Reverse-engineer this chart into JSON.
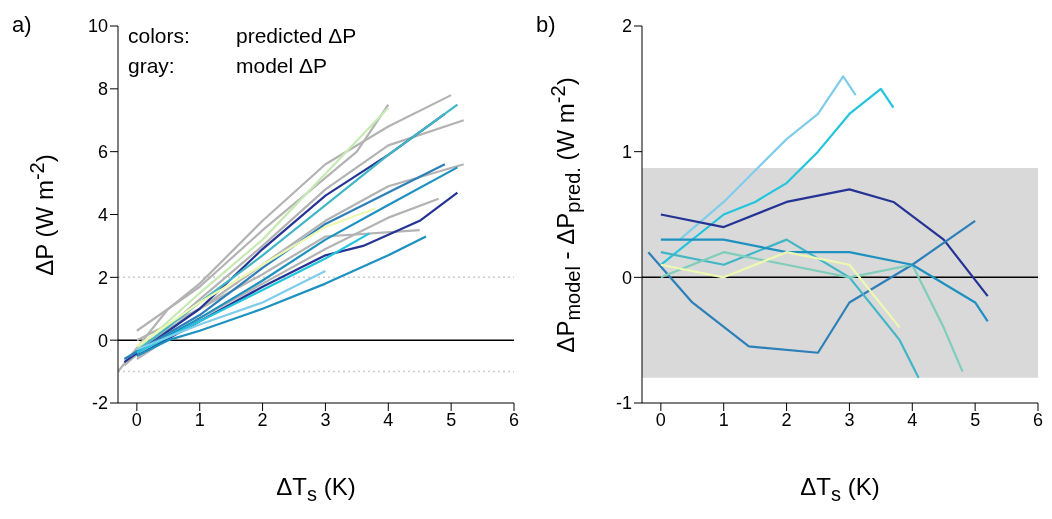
{
  "chart_data": [
    {
      "type": "line",
      "title": "a)",
      "xlabel": "ΔT$_{s}$ (K)",
      "ylabel": "ΔP (W m$^{-2}$)",
      "xlim": [
        -0.3,
        6
      ],
      "xticks": [
        0,
        1,
        2,
        3,
        4,
        5,
        6
      ],
      "ylim": [
        -2,
        10
      ],
      "yticks": [
        -2,
        0,
        2,
        4,
        6,
        8,
        10
      ],
      "annotations": [
        "colors:",
        "predicted ΔP",
        "gray:",
        "model ΔP"
      ],
      "ref_lines": [
        {
          "axis": "y",
          "value": 0,
          "color": "#000000",
          "line_style": "solid"
        },
        {
          "axis": "y",
          "value": 2,
          "color": "#cccccc",
          "line_style": "dotted"
        },
        {
          "axis": "y",
          "value": -1,
          "color": "#cccccc",
          "line_style": "dotted"
        }
      ],
      "series": [
        {
          "color": "#b3b3b3",
          "x": [
            -0.3,
            0.5,
            1,
            2,
            3,
            4,
            5
          ],
          "values": [
            -1,
            1,
            1.8,
            3.8,
            5.6,
            6.8,
            7.8
          ]
        },
        {
          "color": "#b3b3b3",
          "x": [
            -0.2,
            1,
            2,
            3,
            4,
            5.2
          ],
          "values": [
            -0.8,
            1.3,
            3,
            4.8,
            6.2,
            7
          ]
        },
        {
          "color": "#b3b3b3",
          "x": [
            0,
            1,
            2,
            3,
            4,
            5.2
          ],
          "values": [
            0,
            1,
            2.4,
            3.8,
            4.9,
            5.6
          ]
        },
        {
          "color": "#b3b3b3",
          "x": [
            0,
            1,
            2,
            3,
            4,
            4.8
          ],
          "values": [
            -0.6,
            0.7,
            1.8,
            2.9,
            3.9,
            4.5
          ]
        },
        {
          "color": "#b3b3b3",
          "x": [
            0,
            1,
            2,
            3.5,
            4
          ],
          "values": [
            0.3,
            1.7,
            3.5,
            6,
            7.5
          ]
        },
        {
          "color": "#b3b3b3",
          "x": [
            0,
            1,
            2,
            3,
            4.5
          ],
          "values": [
            -0.3,
            1,
            2.1,
            3.3,
            3.5
          ]
        },
        {
          "color": "#c7e9b4",
          "x": [
            0,
            1,
            2,
            3,
            4
          ],
          "values": [
            -0.3,
            1.5,
            3.2,
            5.3,
            7.4
          ]
        },
        {
          "color": "#253494",
          "x": [
            -0.2,
            1,
            2,
            3,
            4,
            4.9
          ],
          "values": [
            -0.7,
            1,
            2.9,
            4.6,
            5.9,
            7.2
          ]
        },
        {
          "color": "#41b6c4",
          "x": [
            -0.1,
            1,
            2,
            3,
            4,
            5.1
          ],
          "values": [
            -0.5,
            1.2,
            2.7,
            4.3,
            5.9,
            7.5
          ]
        },
        {
          "color": "#2c7fb8",
          "x": [
            -0.2,
            1,
            2,
            3,
            4,
            4.9
          ],
          "values": [
            -0.6,
            0.8,
            2.3,
            3.7,
            4.7,
            5.6
          ]
        },
        {
          "color": "#1d91c0",
          "x": [
            0,
            1,
            2,
            3,
            4,
            5.1
          ],
          "values": [
            -0.4,
            0.7,
            1.9,
            3.2,
            4.3,
            5.5
          ]
        },
        {
          "color": "#253494",
          "x": [
            0,
            1,
            2,
            3,
            3.6,
            4.5,
            5.1
          ],
          "values": [
            -0.5,
            0.6,
            1.7,
            2.7,
            3,
            3.8,
            4.7
          ]
        },
        {
          "color": "#1d91c0",
          "x": [
            0,
            0.5,
            1,
            2,
            3,
            4,
            4.6
          ],
          "values": [
            -0.5,
            0,
            0.3,
            1,
            1.8,
            2.7,
            3.3
          ]
        },
        {
          "color": "#22c5dd",
          "x": [
            0,
            1,
            2,
            3,
            3.7
          ],
          "values": [
            -0.4,
            0.6,
            1.6,
            2.6,
            3.4
          ]
        },
        {
          "color": "#7fcdea",
          "x": [
            0,
            1,
            2,
            3
          ],
          "values": [
            -0.3,
            0.5,
            1.2,
            2.2
          ]
        },
        {
          "color": "#edf8b1",
          "x": [
            0,
            1,
            2,
            3,
            3.8
          ],
          "values": [
            -0.2,
            1.2,
            2.4,
            3.6,
            4.2
          ]
        }
      ]
    },
    {
      "type": "line",
      "title": "b)",
      "xlabel": "ΔT$_{s}$ (K)",
      "ylabel": "ΔP$_{model}$ - ΔP$_{pred.}$ (W m$^{-2}$)",
      "xlim": [
        -0.3,
        6
      ],
      "xticks": [
        0,
        1,
        2,
        3,
        4,
        5,
        6
      ],
      "ylim": [
        -1,
        2
      ],
      "yticks": [
        -1,
        0,
        1,
        2
      ],
      "bands": [
        {
          "axis": "y",
          "from": -0.8,
          "to": 0.87,
          "color": "#d9d9d9"
        }
      ],
      "ref_lines": [
        {
          "axis": "y",
          "value": 0,
          "color": "#000000",
          "line_style": "solid"
        }
      ],
      "series": [
        {
          "color": "#7fcdea",
          "x": [
            0.3,
            1,
            1.5,
            2,
            2.5,
            2.9,
            3.1
          ],
          "values": [
            0.3,
            0.6,
            0.85,
            1.1,
            1.3,
            1.6,
            1.45
          ]
        },
        {
          "color": "#22c5dd",
          "x": [
            0,
            1,
            1.5,
            2,
            2.5,
            3,
            3.5,
            3.7
          ],
          "values": [
            0.1,
            0.5,
            0.6,
            0.75,
            1,
            1.3,
            1.5,
            1.35
          ]
        },
        {
          "color": "#253494",
          "x": [
            0,
            1,
            2,
            3,
            3.7,
            4.5,
            5.2
          ],
          "values": [
            0.5,
            0.4,
            0.6,
            0.7,
            0.6,
            0.3,
            -0.15
          ]
        },
        {
          "color": "#2c7fb8",
          "x": [
            -0.2,
            0.5,
            1.4,
            2.5,
            3,
            4,
            5
          ],
          "values": [
            0.2,
            -0.2,
            -0.55,
            -0.6,
            -0.2,
            0.1,
            0.45
          ]
        },
        {
          "color": "#41b6c4",
          "x": [
            0,
            1,
            2,
            3,
            3.8,
            4.1
          ],
          "values": [
            0.2,
            0.1,
            0.3,
            0,
            -0.5,
            -0.8
          ]
        },
        {
          "color": "#7fcdbb",
          "x": [
            0,
            1,
            2,
            3,
            4,
            4.5,
            4.8
          ],
          "values": [
            0,
            0.2,
            0.1,
            0,
            0.1,
            -0.4,
            -0.75
          ]
        },
        {
          "color": "#1d91c0",
          "x": [
            0,
            1,
            2,
            3,
            4,
            5,
            5.2
          ],
          "values": [
            0.3,
            0.3,
            0.2,
            0.2,
            0.1,
            -0.2,
            -0.35
          ]
        },
        {
          "color": "#edf8b1",
          "x": [
            0,
            1,
            2,
            3,
            3.8
          ],
          "values": [
            0.1,
            0,
            0.2,
            0.1,
            -0.4
          ]
        }
      ]
    }
  ]
}
